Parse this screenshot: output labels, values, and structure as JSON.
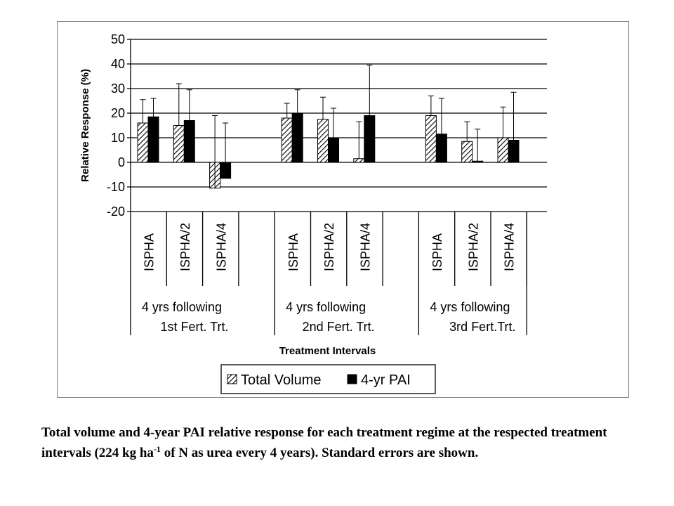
{
  "chart_data": {
    "type": "bar",
    "title": "",
    "ylabel": "Relative Response (%)",
    "xlabel": "Treatment Intervals",
    "ylim": [
      -20,
      50
    ],
    "yticks": [
      50,
      40,
      30,
      20,
      10,
      0,
      -10,
      -20
    ],
    "grid": true,
    "legend": "bottom-center",
    "groups": [
      {
        "label_line1": "4 yrs following",
        "label_line2": "1st Fert. Trt.",
        "categories": [
          "ISPHA",
          "ISPHA/2",
          "ISPHA/4"
        ]
      },
      {
        "label_line1": "4 yrs following",
        "label_line2": "2nd Fert. Trt.",
        "categories": [
          "ISPHA",
          "ISPHA/2",
          "ISPHA/4"
        ]
      },
      {
        "label_line1": "4 yrs following",
        "label_line2": "3rd Fert.Trt.",
        "categories": [
          "ISPHA",
          "ISPHA/2",
          "ISPHA/4"
        ]
      }
    ],
    "series": [
      {
        "name": "Total Volume",
        "pattern": "hatched",
        "values": [
          16,
          15,
          -10.5,
          18,
          17.5,
          1.5,
          19,
          8.5,
          10
        ],
        "error_upper": [
          25.5,
          32,
          19,
          24,
          26.5,
          16.5,
          27,
          16.5,
          22.5
        ]
      },
      {
        "name": "4-yr PAI",
        "pattern": "solid",
        "values": [
          18.5,
          17,
          -6.5,
          20,
          10,
          19,
          11.5,
          0.5,
          9
        ],
        "error_upper": [
          26,
          29.5,
          16,
          29.5,
          22,
          39.5,
          26,
          13.5,
          28.5
        ]
      }
    ]
  },
  "caption": {
    "part1": "Total volume and 4-year PAI relative response for each treatment regime at the respected treatment intervals (224 kg ha",
    "sup": "-1",
    "part2": " of N as urea every 4 years).  Standard errors are shown."
  },
  "colors": {
    "bar_solid": "#000000",
    "border": "#7f7f7f",
    "grid": "#000000"
  }
}
